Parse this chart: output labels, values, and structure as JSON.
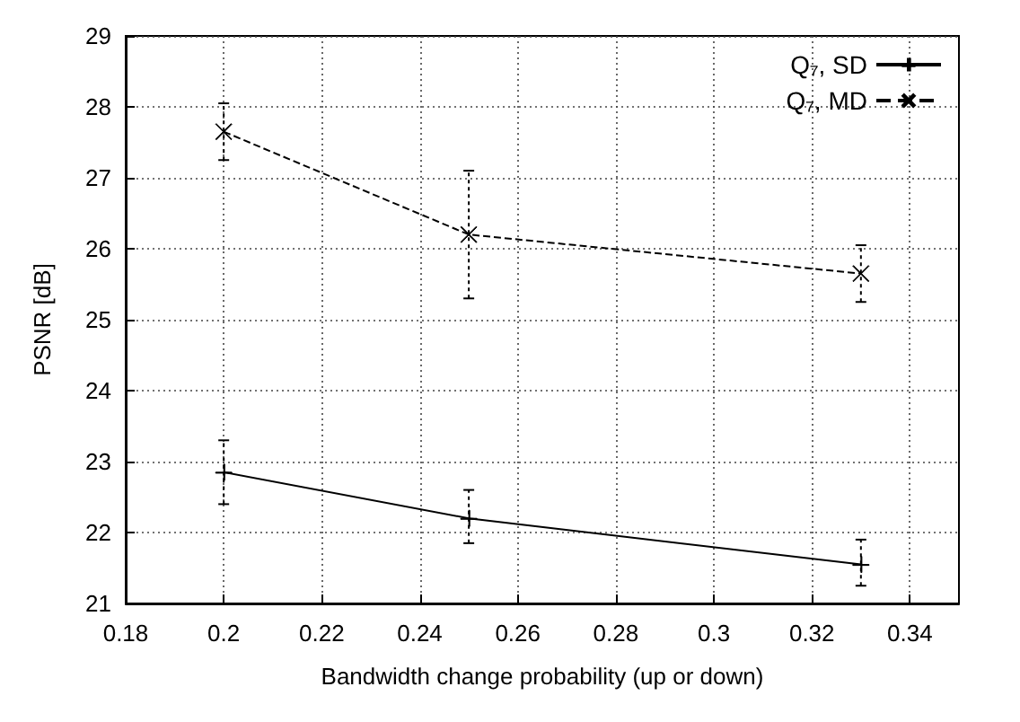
{
  "chart_data": {
    "type": "line",
    "xlabel": "Bandwidth change probability (up or down)",
    "ylabel": "PSNR [dB]",
    "x": [
      0.2,
      0.25,
      0.33
    ],
    "series": [
      {
        "name": "Q₇, SD",
        "color": "#000000",
        "marker": "cross",
        "line_style": "solid",
        "values": [
          22.85,
          22.2,
          21.55
        ],
        "errors": [
          [
            22.4,
            23.3
          ],
          [
            21.85,
            22.6
          ],
          [
            21.25,
            21.9
          ]
        ]
      },
      {
        "name": "Q₇, MD",
        "color": "#000000",
        "marker": "x",
        "line_style": "dashed",
        "values": [
          27.65,
          26.2,
          25.65
        ],
        "errors": [
          [
            27.25,
            28.05
          ],
          [
            25.3,
            27.1
          ],
          [
            25.25,
            26.05
          ]
        ]
      }
    ],
    "xlim": [
      0.18,
      0.35
    ],
    "xticks": [
      0.18,
      0.2,
      0.22,
      0.24,
      0.26,
      0.28,
      0.3,
      0.32,
      0.34
    ],
    "ylim": [
      21,
      29
    ],
    "yticks": [
      21,
      22,
      23,
      24,
      25,
      26,
      27,
      28,
      29
    ],
    "grid": true,
    "legend": "top right"
  }
}
